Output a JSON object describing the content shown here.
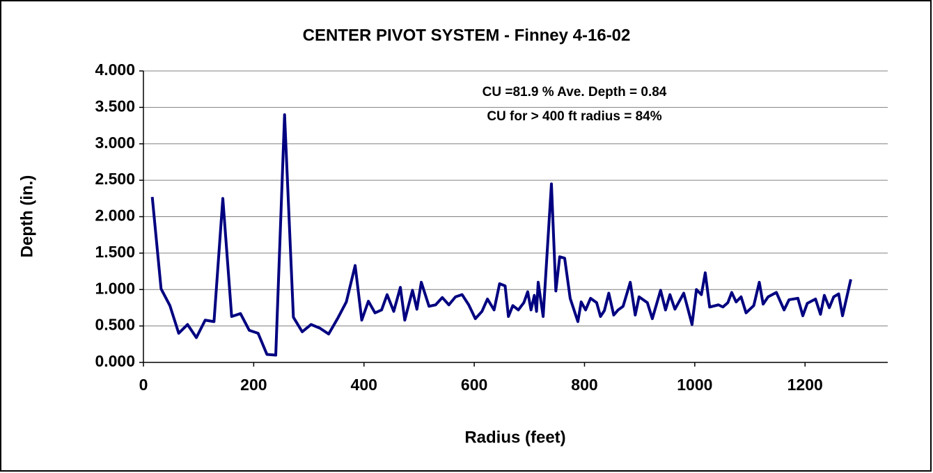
{
  "chart_data": {
    "type": "line",
    "title": "CENTER PIVOT SYSTEM - Finney 4-16-02",
    "x_label": "Radius (feet)",
    "y_label": "Depth (in.)",
    "annotations": [
      "CU =81.9 % Ave. Depth = 0.84",
      "CU for > 400 ft radius = 84%"
    ],
    "grid": true,
    "xlim": [
      0,
      1350
    ],
    "xticks": [
      0,
      200,
      400,
      600,
      800,
      1000,
      1200
    ],
    "ylim": [
      0,
      4
    ],
    "yticks": [
      {
        "value": 0,
        "label": "0.000"
      },
      {
        "value": 0.5,
        "label": "0.500"
      },
      {
        "value": 1,
        "label": "1.000"
      },
      {
        "value": 1.5,
        "label": "1.500"
      },
      {
        "value": 2,
        "label": "2.000"
      },
      {
        "value": 2.5,
        "label": "2.500"
      },
      {
        "value": 3,
        "label": "3.000"
      },
      {
        "value": 3.5,
        "label": "3.500"
      },
      {
        "value": 4,
        "label": "4.000"
      }
    ],
    "x": [
      16,
      32,
      48,
      64,
      80,
      96,
      112,
      128,
      144,
      160,
      176,
      192,
      208,
      224,
      240,
      256,
      272,
      288,
      304,
      320,
      336,
      352,
      368,
      384,
      396,
      408,
      420,
      432,
      442,
      454,
      466,
      474,
      488,
      496,
      504,
      518,
      530,
      542,
      554,
      566,
      578,
      590,
      602,
      614,
      624,
      636,
      646,
      656,
      662,
      670,
      680,
      690,
      697,
      703,
      709,
      713,
      716,
      725,
      740,
      748,
      755,
      764,
      774,
      788,
      794,
      802,
      811,
      822,
      829,
      836,
      844,
      853,
      861,
      870,
      883,
      892,
      899,
      914,
      923,
      938,
      947,
      955,
      964,
      980,
      995,
      1003,
      1012,
      1019,
      1027,
      1043,
      1051,
      1060,
      1067,
      1075,
      1084,
      1093,
      1107,
      1117,
      1124,
      1133,
      1148,
      1162,
      1171,
      1187,
      1196,
      1204,
      1219,
      1228,
      1235,
      1244,
      1252,
      1261,
      1268,
      1283
    ],
    "series": [
      {
        "name": "Depth",
        "color": "#000080",
        "values": [
          2.27,
          1.01,
          0.78,
          0.4,
          0.52,
          0.34,
          0.58,
          0.56,
          2.25,
          0.63,
          0.67,
          0.44,
          0.4,
          0.11,
          0.1,
          3.4,
          0.62,
          0.42,
          0.52,
          0.47,
          0.39,
          0.6,
          0.83,
          1.33,
          0.58,
          0.84,
          0.68,
          0.72,
          0.93,
          0.7,
          1.03,
          0.58,
          0.99,
          0.73,
          1.1,
          0.77,
          0.79,
          0.89,
          0.79,
          0.9,
          0.93,
          0.79,
          0.6,
          0.7,
          0.87,
          0.72,
          1.08,
          1.05,
          0.63,
          0.78,
          0.72,
          0.82,
          0.97,
          0.72,
          0.92,
          0.7,
          1.1,
          0.63,
          2.45,
          0.98,
          1.45,
          1.43,
          0.88,
          0.56,
          0.83,
          0.72,
          0.88,
          0.82,
          0.63,
          0.71,
          0.95,
          0.65,
          0.72,
          0.77,
          1.1,
          0.65,
          0.9,
          0.82,
          0.6,
          0.99,
          0.72,
          0.93,
          0.73,
          0.95,
          0.52,
          1.0,
          0.93,
          1.23,
          0.76,
          0.79,
          0.76,
          0.82,
          0.96,
          0.83,
          0.9,
          0.68,
          0.78,
          1.1,
          0.8,
          0.9,
          0.96,
          0.72,
          0.86,
          0.88,
          0.64,
          0.81,
          0.87,
          0.66,
          0.92,
          0.75,
          0.9,
          0.94,
          0.64,
          1.14
        ]
      }
    ]
  }
}
